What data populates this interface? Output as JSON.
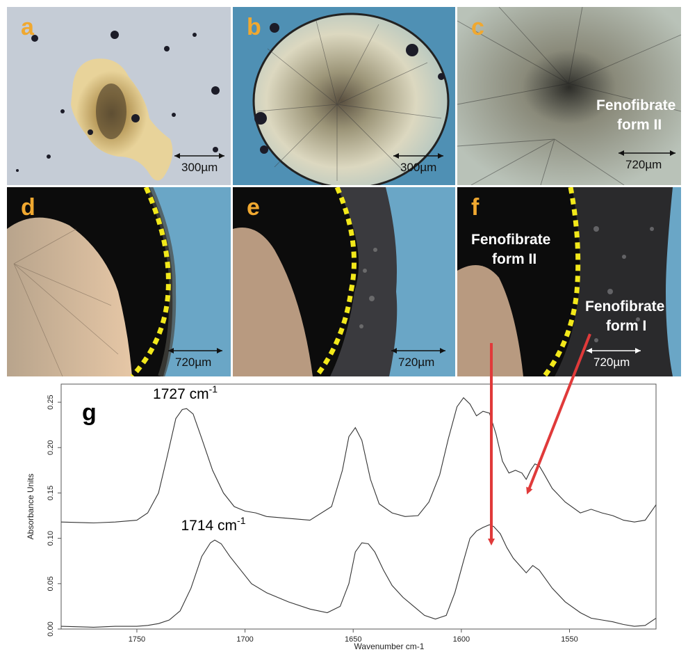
{
  "panels": {
    "a": {
      "label": "a",
      "scale": "300µm"
    },
    "b": {
      "label": "b",
      "scale": "300µm"
    },
    "c": {
      "label": "c",
      "scale": "720µm",
      "annotation_line1": "Fenofibrate",
      "annotation_line2": "form II"
    },
    "d": {
      "label": "d",
      "scale": "720µm"
    },
    "e": {
      "label": "e",
      "scale": "720µm"
    },
    "f": {
      "label": "f",
      "scale": "720µm",
      "annotation_left_line1": "Fenofibrate",
      "annotation_left_line2": "form II",
      "annotation_right_line1": "Fenofibrate",
      "annotation_right_line2": "form I"
    }
  },
  "colors": {
    "panel_label": "#f0a830",
    "boundary": "#f2e81a",
    "arrow": "#e03a3a",
    "trace": "#333333"
  },
  "chart_data": {
    "type": "line",
    "panel_label": "g",
    "xlabel": "Wavenumber cm-1",
    "ylabel": "Absorbance Units",
    "xlim": [
      1785,
      1510
    ],
    "ylim": [
      0.0,
      0.27
    ],
    "xticks": [
      1750,
      1700,
      1650,
      1600,
      1550
    ],
    "yticks": [
      0.0,
      0.05,
      0.1,
      0.15,
      0.2,
      0.25
    ],
    "ytick_labels": [
      "0.00",
      "0.05",
      "0.10",
      "0.15",
      "0.20",
      "0.25"
    ],
    "annotations": [
      {
        "text": "1727 cm",
        "sup": "-1",
        "x": 1727,
        "y": 0.243
      },
      {
        "text": "1714 cm",
        "sup": "-1",
        "x": 1714,
        "y": 0.098
      }
    ],
    "series": [
      {
        "x": [
          1785,
          1770,
          1760,
          1750,
          1745,
          1740,
          1736,
          1732,
          1729,
          1727,
          1724,
          1720,
          1715,
          1710,
          1705,
          1700,
          1695,
          1690,
          1680,
          1670,
          1660,
          1655,
          1652,
          1649,
          1646,
          1642,
          1638,
          1632,
          1626,
          1620,
          1615,
          1610,
          1606,
          1602,
          1599,
          1596,
          1593,
          1590,
          1587,
          1584,
          1581,
          1578,
          1575,
          1572,
          1570,
          1568,
          1566,
          1564,
          1562,
          1558,
          1552,
          1545,
          1540,
          1535,
          1530,
          1525,
          1520,
          1515,
          1510
        ],
        "y": [
          0.118,
          0.117,
          0.118,
          0.12,
          0.128,
          0.15,
          0.19,
          0.232,
          0.242,
          0.243,
          0.237,
          0.21,
          0.175,
          0.15,
          0.135,
          0.13,
          0.128,
          0.124,
          0.122,
          0.12,
          0.135,
          0.175,
          0.212,
          0.222,
          0.208,
          0.165,
          0.138,
          0.128,
          0.124,
          0.125,
          0.14,
          0.17,
          0.21,
          0.245,
          0.255,
          0.248,
          0.235,
          0.24,
          0.238,
          0.215,
          0.185,
          0.172,
          0.175,
          0.172,
          0.165,
          0.175,
          0.182,
          0.18,
          0.172,
          0.155,
          0.14,
          0.128,
          0.132,
          0.128,
          0.125,
          0.12,
          0.118,
          0.12,
          0.137
        ]
      },
      {
        "x": [
          1785,
          1770,
          1760,
          1750,
          1745,
          1740,
          1735,
          1730,
          1725,
          1720,
          1716,
          1714,
          1711,
          1707,
          1702,
          1697,
          1690,
          1680,
          1670,
          1662,
          1656,
          1652,
          1649,
          1646,
          1643,
          1640,
          1636,
          1632,
          1627,
          1622,
          1617,
          1612,
          1607,
          1603,
          1599,
          1596,
          1593,
          1590,
          1587,
          1585,
          1582,
          1579,
          1576,
          1573,
          1570,
          1567,
          1564,
          1561,
          1558,
          1552,
          1545,
          1540,
          1535,
          1530,
          1525,
          1520,
          1515,
          1510
        ],
        "y": [
          0.003,
          0.002,
          0.003,
          0.003,
          0.004,
          0.006,
          0.01,
          0.02,
          0.045,
          0.08,
          0.095,
          0.098,
          0.094,
          0.08,
          0.065,
          0.05,
          0.04,
          0.03,
          0.022,
          0.018,
          0.025,
          0.05,
          0.085,
          0.095,
          0.094,
          0.085,
          0.065,
          0.048,
          0.035,
          0.025,
          0.015,
          0.011,
          0.015,
          0.04,
          0.075,
          0.1,
          0.108,
          0.112,
          0.115,
          0.113,
          0.105,
          0.09,
          0.078,
          0.07,
          0.062,
          0.07,
          0.065,
          0.055,
          0.045,
          0.03,
          0.018,
          0.012,
          0.01,
          0.008,
          0.005,
          0.003,
          0.004,
          0.012
        ]
      }
    ],
    "grid": false,
    "legend": "none"
  }
}
